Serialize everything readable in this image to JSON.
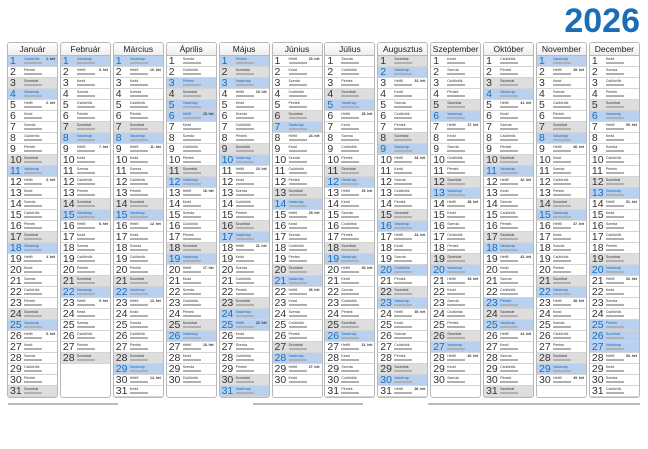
{
  "year": "2026",
  "months": [
    "Január",
    "Február",
    "Március",
    "Április",
    "Május",
    "Június",
    "Július",
    "Augusztus",
    "Szeptember",
    "Október",
    "November",
    "December"
  ],
  "day_names": [
    "Vasárnap",
    "Hétfő",
    "Kedd",
    "Szerda",
    "Csütörtök",
    "Péntek",
    "Szombat"
  ],
  "week_suffix": "hét",
  "holidays": [
    "1-1",
    "3-15",
    "4-3",
    "4-5",
    "4-6",
    "5-1",
    "5-24",
    "5-25",
    "8-20",
    "10-23",
    "11-1",
    "12-25",
    "12-26"
  ],
  "colors": {
    "accent": "#1b6db5",
    "holiday_bg": "#b9d0ee",
    "saturday_bg": "#dedede"
  }
}
